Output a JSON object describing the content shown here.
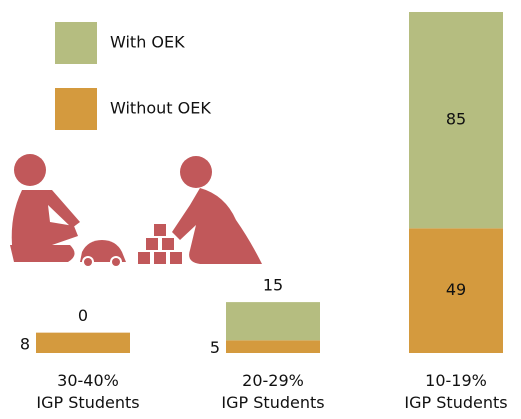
{
  "chart_data": {
    "type": "stacked-bar",
    "categories": [
      "30-40%\nIGP Students",
      "20-29%\nIGP Students",
      "10-19%\nIGP Students"
    ],
    "series": [
      {
        "name": "Without OEK",
        "color": "#d49a3e",
        "values": [
          8,
          5,
          49
        ]
      },
      {
        "name": "With OEK",
        "color": "#b5bd80",
        "values": [
          0,
          15,
          85
        ]
      }
    ],
    "ylim": [
      0,
      134
    ]
  }
}
